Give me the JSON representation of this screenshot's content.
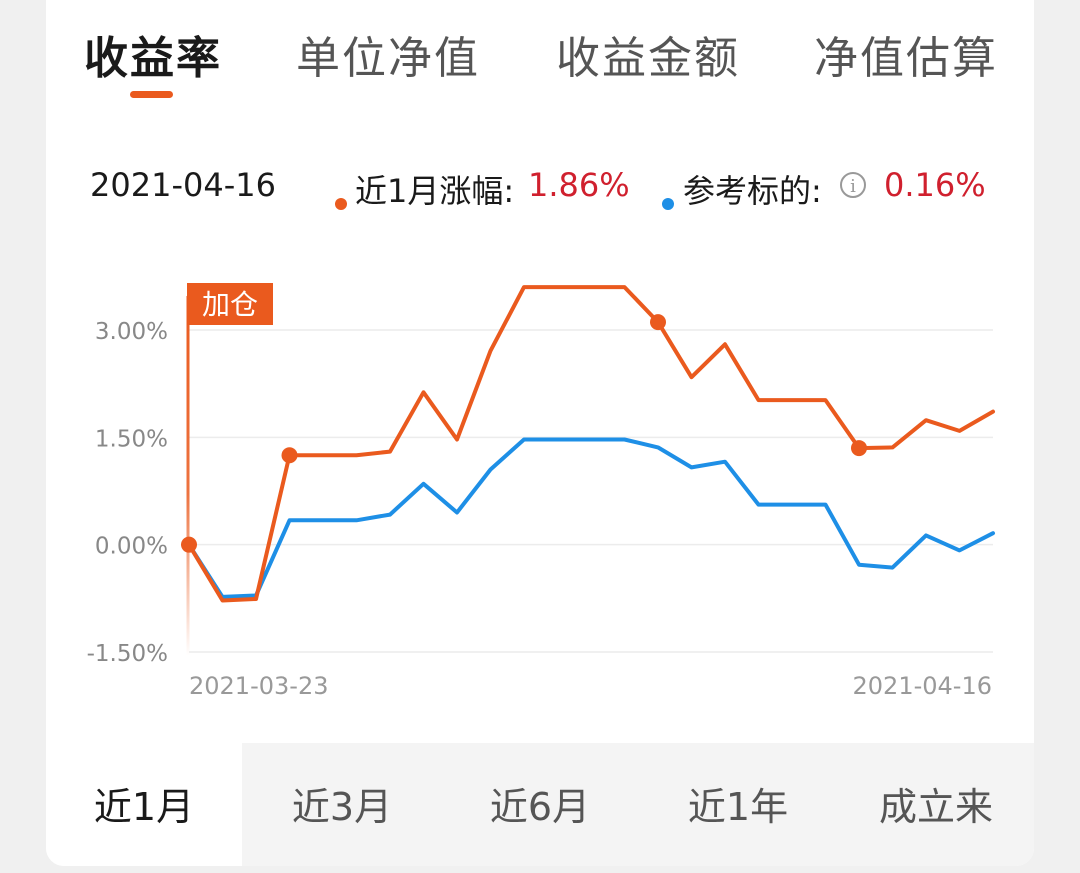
{
  "tabs": [
    "收益率",
    "单位净值",
    "收益金额",
    "净值估算"
  ],
  "info": {
    "date": "2021-04-16",
    "fund_label": "近1月涨幅:",
    "fund_value": "1.86%",
    "ref_label": "参考标的:",
    "ref_value": "0.16%"
  },
  "colors": {
    "fund": "#ea5a1e",
    "reference": "#1e8fe6",
    "positive": "#d0202e",
    "accent": "#ea5a1e"
  },
  "chart_data": {
    "type": "line",
    "x_start_label": "2021-03-23",
    "x_end_label": "2021-04-16",
    "yticks": [
      "3.00%",
      "1.50%",
      "0.00%",
      "-1.50%"
    ],
    "ytick_values": [
      3.0,
      1.5,
      0.0,
      -1.5
    ],
    "ylim": [
      -1.5,
      3.0
    ],
    "grid": true,
    "series": [
      {
        "name": "近1月涨幅",
        "values": [
          0.0,
          -0.78,
          -0.76,
          1.25,
          1.25,
          1.25,
          1.3,
          2.13,
          1.47,
          2.71,
          3.6,
          3.6,
          3.6,
          3.6,
          3.11,
          2.34,
          2.8,
          2.02,
          2.02,
          2.02,
          1.35,
          1.36,
          1.74,
          1.59,
          1.86
        ]
      },
      {
        "name": "参考标的",
        "values": [
          0.0,
          -0.73,
          -0.71,
          0.34,
          0.34,
          0.34,
          0.42,
          0.85,
          0.45,
          1.05,
          1.47,
          1.47,
          1.47,
          1.47,
          1.36,
          1.08,
          1.16,
          0.56,
          0.56,
          0.56,
          -0.28,
          -0.32,
          0.13,
          -0.08,
          0.16
        ]
      }
    ],
    "markers": [
      0,
      3,
      14,
      20
    ],
    "annotation": {
      "text": "加仓",
      "index": 0
    }
  },
  "ranges": [
    "近1月",
    "近3月",
    "近6月",
    "近1年",
    "成立来"
  ],
  "active_range": 0
}
